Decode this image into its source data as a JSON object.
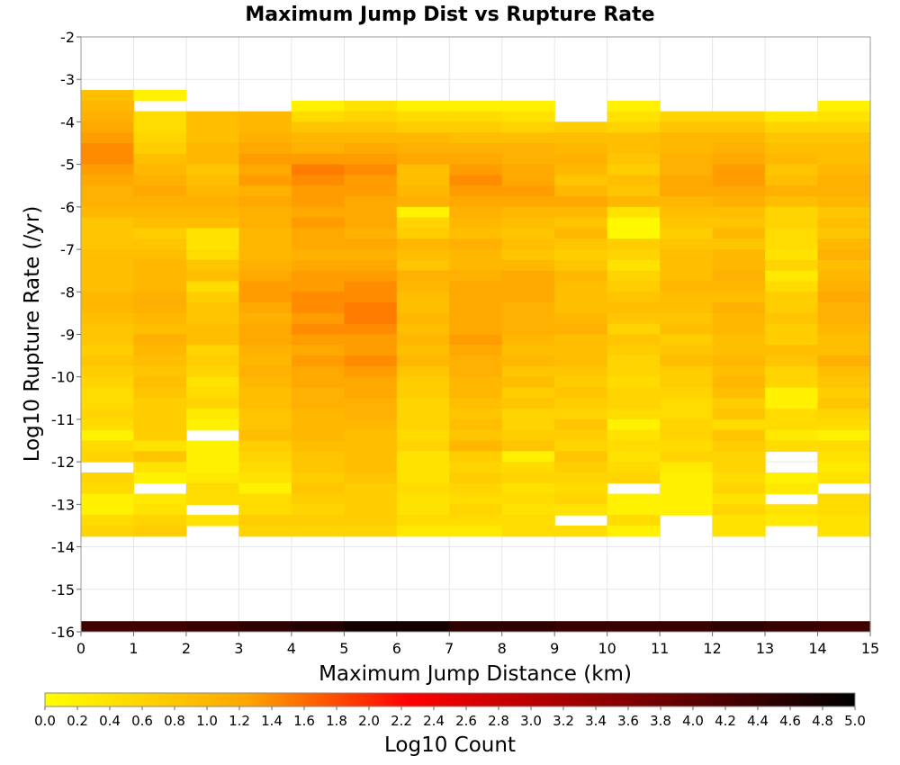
{
  "chart_data": {
    "type": "heatmap",
    "title": "Maximum Jump Dist vs Rupture Rate",
    "xlabel": "Maximum Jump Distance (km)",
    "ylabel": "Log10 Rupture Rate (/yr)",
    "colorbar_label": "Log10 Count",
    "xlim": [
      0,
      15
    ],
    "ylim": [
      -16,
      -2
    ],
    "clim": [
      0,
      5
    ],
    "x_ticks": [
      "0",
      "1",
      "2",
      "3",
      "4",
      "5",
      "6",
      "7",
      "8",
      "9",
      "10",
      "11",
      "12",
      "13",
      "14",
      "15"
    ],
    "y_ticks": [
      "-2",
      "-3",
      "-4",
      "-5",
      "-6",
      "-7",
      "-8",
      "-9",
      "-10",
      "-11",
      "-12",
      "-13",
      "-14",
      "-15",
      "-16"
    ],
    "colorbar_ticks": [
      "0.0",
      "0.2",
      "0.4",
      "0.6",
      "0.8",
      "1.0",
      "1.2",
      "1.4",
      "1.6",
      "1.8",
      "2.0",
      "2.2",
      "2.4",
      "2.6",
      "2.8",
      "3.0",
      "3.2",
      "3.4",
      "3.6",
      "3.8",
      "4.0",
      "4.2",
      "4.4",
      "4.6",
      "4.8",
      "5.0"
    ],
    "colormap": [
      "#ffff00",
      "#ffa500",
      "#ff0000",
      "#8b0000",
      "#000000"
    ],
    "x_bin_width": 1,
    "y_bin_width": 0.25,
    "y_bins_top_edge": -3.25,
    "grid": true,
    "values": [
      [
        0.9,
        0.2,
        null,
        null,
        null,
        null,
        null,
        null,
        null,
        null,
        null,
        null,
        null,
        null,
        null
      ],
      [
        1.0,
        null,
        null,
        null,
        0.2,
        0.4,
        0.2,
        0.2,
        0.2,
        null,
        0.2,
        null,
        null,
        null,
        0.2
      ],
      [
        1.1,
        0.5,
        0.9,
        1.0,
        0.5,
        0.6,
        0.5,
        0.5,
        0.4,
        null,
        0.4,
        0.6,
        0.6,
        0.3,
        0.4
      ],
      [
        1.2,
        0.5,
        0.9,
        1.0,
        0.8,
        0.8,
        0.7,
        0.7,
        0.6,
        0.7,
        0.6,
        0.8,
        0.8,
        0.6,
        0.6
      ],
      [
        1.3,
        0.6,
        0.9,
        1.1,
        1.0,
        1.0,
        1.0,
        0.9,
        0.9,
        0.9,
        0.9,
        1.0,
        1.0,
        0.8,
        0.8
      ],
      [
        1.4,
        0.7,
        1.0,
        1.2,
        1.1,
        1.2,
        1.1,
        1.1,
        1.1,
        1.0,
        0.9,
        1.0,
        1.1,
        0.9,
        0.9
      ],
      [
        1.4,
        0.9,
        1.0,
        1.3,
        1.3,
        1.3,
        1.2,
        1.2,
        1.1,
        1.1,
        0.8,
        1.1,
        1.2,
        1.0,
        0.9
      ],
      [
        1.3,
        1.0,
        0.8,
        1.2,
        1.5,
        1.4,
        0.9,
        1.3,
        1.2,
        1.0,
        0.7,
        1.1,
        1.3,
        0.8,
        1.0
      ],
      [
        1.2,
        1.1,
        0.9,
        1.3,
        1.4,
        1.3,
        0.9,
        1.4,
        1.2,
        0.8,
        0.9,
        1.2,
        1.3,
        0.9,
        1.1
      ],
      [
        1.1,
        1.2,
        1.0,
        1.1,
        1.3,
        1.3,
        1.0,
        1.3,
        1.3,
        1.0,
        0.8,
        1.2,
        1.2,
        1.1,
        1.1
      ],
      [
        1.1,
        1.1,
        1.1,
        1.2,
        1.3,
        1.2,
        1.1,
        1.2,
        1.2,
        1.2,
        1.0,
        1.0,
        1.1,
        0.9,
        1.0
      ],
      [
        1.0,
        1.0,
        1.0,
        1.1,
        1.2,
        1.2,
        0.2,
        1.1,
        1.0,
        1.0,
        0.4,
        0.9,
        0.9,
        0.6,
        0.8
      ],
      [
        0.8,
        0.9,
        0.9,
        1.1,
        1.3,
        1.2,
        0.6,
        1.0,
        0.9,
        0.8,
        0.1,
        0.8,
        0.8,
        0.6,
        0.9
      ],
      [
        0.8,
        0.7,
        0.4,
        1.0,
        1.2,
        1.1,
        0.7,
        0.9,
        0.8,
        1.0,
        0.1,
        0.7,
        1.0,
        0.5,
        0.8
      ],
      [
        0.8,
        0.8,
        0.4,
        1.0,
        1.2,
        1.2,
        1.0,
        1.1,
        0.9,
        0.8,
        0.7,
        0.8,
        0.8,
        0.5,
        1.0
      ],
      [
        0.9,
        0.9,
        0.5,
        1.0,
        1.1,
        1.1,
        0.9,
        1.0,
        0.8,
        0.7,
        0.6,
        0.9,
        1.0,
        0.4,
        1.1
      ],
      [
        0.9,
        1.0,
        0.8,
        1.1,
        1.2,
        1.2,
        0.8,
        1.0,
        1.0,
        0.8,
        0.4,
        0.9,
        1.0,
        0.6,
        0.9
      ],
      [
        0.9,
        1.0,
        0.9,
        1.2,
        1.3,
        1.3,
        1.1,
        1.1,
        1.2,
        1.0,
        0.6,
        0.9,
        1.1,
        0.3,
        1.0
      ],
      [
        0.9,
        1.0,
        0.5,
        1.3,
        1.3,
        1.4,
        1.0,
        1.2,
        1.2,
        0.9,
        0.7,
        1.0,
        1.0,
        0.5,
        1.1
      ],
      [
        1.0,
        1.1,
        0.7,
        1.3,
        1.4,
        1.4,
        0.9,
        1.2,
        1.2,
        0.9,
        0.8,
        0.9,
        0.9,
        0.7,
        1.2
      ],
      [
        1.0,
        1.1,
        0.8,
        1.2,
        1.4,
        1.5,
        0.9,
        1.2,
        1.1,
        0.9,
        0.9,
        0.9,
        1.1,
        0.7,
        1.1
      ],
      [
        0.9,
        1.0,
        0.8,
        1.1,
        1.3,
        1.5,
        1.0,
        1.2,
        1.1,
        1.0,
        0.8,
        0.8,
        1.0,
        0.8,
        1.1
      ],
      [
        0.8,
        0.9,
        0.9,
        1.2,
        1.4,
        1.4,
        0.9,
        1.2,
        1.1,
        1.1,
        0.6,
        0.9,
        1.0,
        0.7,
        1.0
      ],
      [
        0.8,
        1.1,
        0.9,
        1.2,
        1.3,
        1.3,
        1.0,
        1.3,
        1.0,
        0.9,
        0.8,
        0.7,
        0.9,
        0.7,
        0.9
      ],
      [
        0.7,
        1.0,
        0.6,
        1.1,
        1.2,
        1.3,
        0.9,
        1.2,
        0.9,
        0.9,
        0.7,
        0.8,
        0.9,
        0.9,
        0.9
      ],
      [
        0.8,
        0.9,
        0.7,
        1.0,
        1.3,
        1.4,
        1.0,
        1.1,
        1.0,
        0.9,
        0.6,
        0.9,
        1.0,
        0.8,
        1.1
      ],
      [
        0.7,
        0.8,
        0.6,
        1.1,
        1.2,
        1.3,
        0.8,
        1.1,
        0.8,
        0.8,
        0.6,
        0.7,
        0.9,
        0.6,
        0.9
      ],
      [
        0.6,
        0.9,
        0.4,
        1.0,
        1.2,
        1.2,
        0.7,
        1.0,
        0.9,
        0.7,
        0.5,
        0.7,
        1.0,
        0.6,
        0.8
      ],
      [
        0.5,
        0.8,
        0.5,
        0.9,
        1.1,
        1.2,
        0.7,
        1.0,
        0.7,
        0.8,
        0.6,
        0.6,
        0.9,
        0.2,
        0.7
      ],
      [
        0.5,
        0.7,
        0.6,
        0.9,
        1.1,
        1.1,
        0.6,
        0.9,
        0.8,
        0.7,
        0.6,
        0.5,
        0.7,
        0.2,
        0.8
      ],
      [
        0.6,
        0.7,
        0.3,
        0.8,
        1.0,
        1.1,
        0.6,
        0.8,
        0.6,
        0.6,
        0.5,
        0.5,
        0.8,
        0.5,
        0.6
      ],
      [
        0.5,
        0.7,
        0.2,
        0.8,
        1.0,
        1.0,
        0.6,
        0.9,
        0.6,
        0.8,
        0.2,
        0.6,
        0.5,
        0.5,
        0.5
      ],
      [
        0.2,
        0.7,
        null,
        0.9,
        1.0,
        0.9,
        0.5,
        0.8,
        0.7,
        0.7,
        0.4,
        0.6,
        0.8,
        0.3,
        0.2
      ],
      [
        0.5,
        0.4,
        0.2,
        0.7,
        0.9,
        0.9,
        0.6,
        1.0,
        0.8,
        0.6,
        0.5,
        0.5,
        0.7,
        0.5,
        0.5
      ],
      [
        0.6,
        0.8,
        0.2,
        0.6,
        0.8,
        0.9,
        0.4,
        0.7,
        0.2,
        0.8,
        0.4,
        0.6,
        0.6,
        null,
        0.4
      ],
      [
        null,
        0.4,
        0.2,
        0.5,
        0.8,
        0.9,
        0.4,
        0.6,
        0.5,
        0.7,
        0.5,
        0.3,
        0.6,
        null,
        0.3
      ],
      [
        0.6,
        0.2,
        0.3,
        0.4,
        0.7,
        0.8,
        0.4,
        0.7,
        0.6,
        0.6,
        0.6,
        0.2,
        0.5,
        0.2,
        0.4
      ],
      [
        0.5,
        null,
        0.5,
        0.2,
        0.8,
        0.7,
        0.5,
        0.6,
        0.4,
        0.5,
        null,
        0.2,
        0.6,
        0.3,
        null
      ],
      [
        0.2,
        0.3,
        0.5,
        0.5,
        0.7,
        0.7,
        0.4,
        0.5,
        0.5,
        0.6,
        0.2,
        0.2,
        0.4,
        null,
        0.5
      ],
      [
        0.2,
        0.4,
        null,
        0.5,
        0.6,
        0.7,
        0.4,
        0.6,
        0.4,
        0.4,
        0.2,
        0.2,
        0.6,
        0.4,
        0.5
      ],
      [
        0.5,
        0.6,
        0.4,
        0.7,
        0.7,
        0.7,
        0.5,
        0.5,
        0.5,
        null,
        0.5,
        null,
        0.4,
        0.3,
        0.4
      ],
      [
        0.6,
        0.7,
        null,
        0.6,
        0.6,
        0.6,
        0.3,
        0.3,
        0.5,
        0.5,
        0.2,
        null,
        0.4,
        null,
        0.4
      ]
    ],
    "bottom_row_range": [
      -16,
      -15.75
    ],
    "bottom_row_values": [
      4.3,
      4.3,
      4.4,
      4.5,
      4.6,
      4.8,
      4.8,
      4.5,
      4.5,
      4.4,
      4.4,
      4.4,
      4.5,
      4.4,
      4.3
    ]
  }
}
